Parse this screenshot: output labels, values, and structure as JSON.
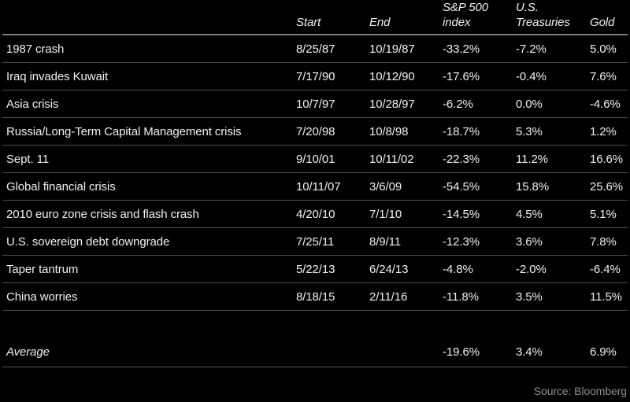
{
  "colors": {
    "background": "#000000",
    "text": "#f0f0f0",
    "separator": "#4d4d4d",
    "header_rule": "#7d7d7d",
    "source_text": "#8f8f8f"
  },
  "chart_data": {
    "type": "table",
    "columns": [
      "",
      "Start",
      "End",
      "S&P 500 index",
      "U.S. Treasuries",
      "Gold"
    ],
    "header_lines": {
      "start": "Start",
      "end": "End",
      "sp500": [
        "S&P 500",
        "index"
      ],
      "treasuries": [
        "U.S.",
        "Treasuries"
      ],
      "gold": "Gold"
    },
    "rows": [
      {
        "event": "1987 crash",
        "start": "8/25/87",
        "end": "10/19/87",
        "sp500": "-33.2%",
        "treasuries": "-7.2%",
        "gold": "5.0%"
      },
      {
        "event": "Iraq invades Kuwait",
        "start": "7/17/90",
        "end": "10/12/90",
        "sp500": "-17.6%",
        "treasuries": "-0.4%",
        "gold": "7.6%"
      },
      {
        "event": "Asia crisis",
        "start": "10/7/97",
        "end": "10/28/97",
        "sp500": "-6.2%",
        "treasuries": "0.0%",
        "gold": "-4.6%"
      },
      {
        "event": "Russia/Long-Term Capital Management crisis",
        "start": "7/20/98",
        "end": "10/8/98",
        "sp500": "-18.7%",
        "treasuries": "5.3%",
        "gold": "1.2%"
      },
      {
        "event": "Sept. 11",
        "start": "9/10/01",
        "end": "10/11/02",
        "sp500": "-22.3%",
        "treasuries": "11.2%",
        "gold": "16.6%"
      },
      {
        "event": "Global financial crisis",
        "start": "10/11/07",
        "end": "3/6/09",
        "sp500": "-54.5%",
        "treasuries": "15.8%",
        "gold": "25.6%"
      },
      {
        "event": "2010 euro zone crisis and flash crash",
        "start": "4/20/10",
        "end": "7/1/10",
        "sp500": "-14.5%",
        "treasuries": "4.5%",
        "gold": "5.1%"
      },
      {
        "event": "U.S. sovereign debt downgrade",
        "start": "7/25/11",
        "end": "8/9/11",
        "sp500": "-12.3%",
        "treasuries": "3.6%",
        "gold": "7.8%"
      },
      {
        "event": "Taper tantrum",
        "start": "5/22/13",
        "end": "6/24/13",
        "sp500": "-4.8%",
        "treasuries": "-2.0%",
        "gold": "-6.4%"
      },
      {
        "event": "China worries",
        "start": "8/18/15",
        "end": "2/11/16",
        "sp500": "-11.8%",
        "treasuries": "3.5%",
        "gold": "11.5%"
      }
    ],
    "average_row": {
      "label": "Average",
      "start": "",
      "end": "",
      "sp500": "-19.6%",
      "treasuries": "3.4%",
      "gold": "6.9%"
    },
    "source": "Source: Bloomberg"
  }
}
